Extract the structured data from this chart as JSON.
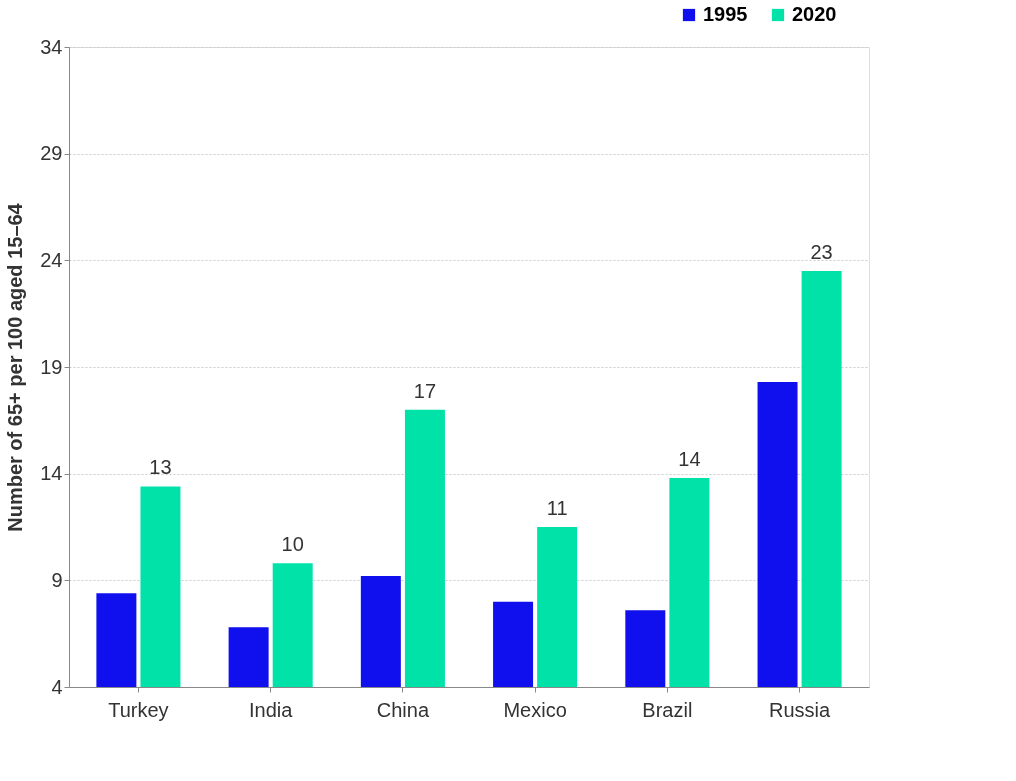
{
  "chart_data": {
    "type": "bar",
    "ylabel": "Number of 65+ per 100 aged 15–64",
    "categories": [
      "Turkey",
      "India",
      "China",
      "Mexico",
      "Brazil",
      "Russia"
    ],
    "series": [
      {
        "name": "1995",
        "color": "#1010ee",
        "values": [
          8.4,
          6.8,
          9.2,
          8.0,
          7.6,
          18.3
        ]
      },
      {
        "name": "2020",
        "color": "#00e2a8",
        "values": [
          13.4,
          9.8,
          17.0,
          11.5,
          13.8,
          23.5
        ],
        "value_labels": [
          "13",
          "10",
          "17",
          "11",
          "14",
          "23"
        ]
      }
    ],
    "ylim": [
      4,
      34
    ],
    "yticks": [
      4,
      9,
      14,
      19,
      24,
      29,
      34
    ],
    "grid": "y",
    "legend": "top right"
  }
}
